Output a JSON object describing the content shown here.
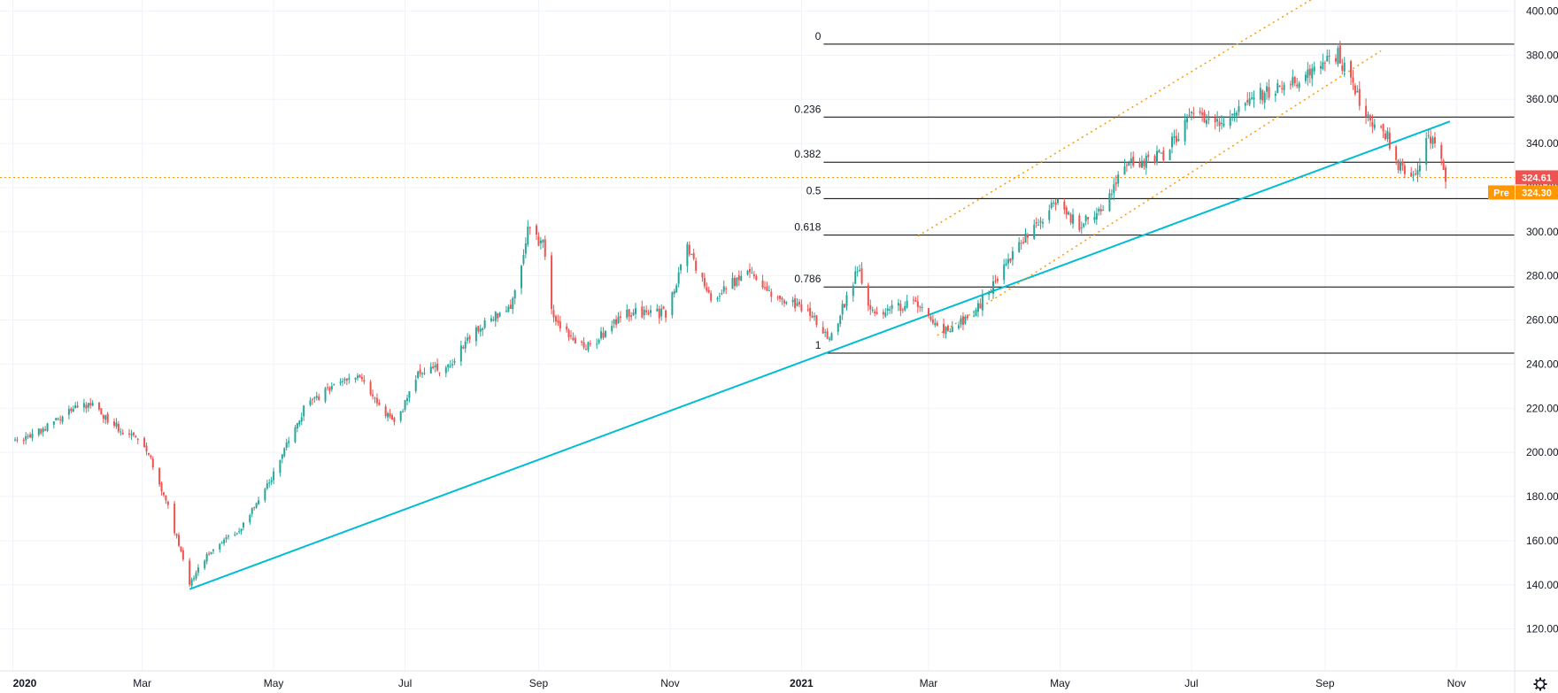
{
  "colors": {
    "up": "#26a69a",
    "down": "#ef5350",
    "grid": "#f0f3fa",
    "trendline": "#00bcd4",
    "channel": "#ff9800",
    "fib_line": "#000000",
    "last_price": "#ef5350",
    "pre_market": "#ff9800"
  },
  "chart_data": {
    "type": "candlestick",
    "x_range": [
      "2019-12-26",
      "2021-11-28"
    ],
    "ylim": [
      101,
      405
    ],
    "y_ticks": [
      "120.00",
      "140.00",
      "160.00",
      "180.00",
      "200.00",
      "220.00",
      "240.00",
      "260.00",
      "280.00",
      "300.00",
      "320.00",
      "340.00",
      "360.00",
      "380.00",
      "400.00"
    ],
    "y_tick_values": [
      120,
      140,
      160,
      180,
      200,
      220,
      240,
      260,
      280,
      300,
      320,
      340,
      360,
      380,
      400
    ],
    "x_ticks": [
      {
        "label": "2020",
        "date": "2020-01-01"
      },
      {
        "label": "Mar",
        "date": "2020-03-01"
      },
      {
        "label": "May",
        "date": "2020-05-01"
      },
      {
        "label": "Jul",
        "date": "2020-07-01"
      },
      {
        "label": "Sep",
        "date": "2020-09-01"
      },
      {
        "label": "Nov",
        "date": "2020-11-01"
      },
      {
        "label": "2021",
        "date": "2021-01-01"
      },
      {
        "label": "Mar",
        "date": "2021-03-01"
      },
      {
        "label": "May",
        "date": "2021-05-01"
      },
      {
        "label": "Jul",
        "date": "2021-07-01"
      },
      {
        "label": "Sep",
        "date": "2021-09-01"
      },
      {
        "label": "Nov",
        "date": "2021-11-01"
      }
    ],
    "price_path": [
      [
        "2020-01-02",
        205
      ],
      [
        "2020-01-15",
        210
      ],
      [
        "2020-01-30",
        220
      ],
      [
        "2020-02-07",
        222
      ],
      [
        "2020-02-12",
        217
      ],
      [
        "2020-02-20",
        210
      ],
      [
        "2020-03-02",
        204
      ],
      [
        "2020-03-12",
        178
      ],
      [
        "2020-03-23",
        141
      ],
      [
        "2020-04-01",
        155
      ],
      [
        "2020-04-15",
        165
      ],
      [
        "2020-05-01",
        190
      ],
      [
        "2020-05-15",
        220
      ],
      [
        "2020-06-01",
        232
      ],
      [
        "2020-06-10",
        234
      ],
      [
        "2020-06-26",
        212
      ],
      [
        "2020-07-08",
        237
      ],
      [
        "2020-07-20",
        238
      ],
      [
        "2020-07-31",
        252
      ],
      [
        "2020-08-20",
        268
      ],
      [
        "2020-08-27",
        301
      ],
      [
        "2020-09-03",
        294
      ],
      [
        "2020-09-08",
        260
      ],
      [
        "2020-09-23",
        247
      ],
      [
        "2020-10-12",
        263
      ],
      [
        "2020-10-30",
        263
      ],
      [
        "2020-11-09",
        292
      ],
      [
        "2020-11-20",
        270
      ],
      [
        "2020-12-07",
        282
      ],
      [
        "2020-12-21",
        270
      ],
      [
        "2021-01-04",
        265
      ],
      [
        "2021-01-14",
        250
      ],
      [
        "2021-01-27",
        283
      ],
      [
        "2021-02-03",
        263
      ],
      [
        "2021-02-24",
        268
      ],
      [
        "2021-03-08",
        255
      ],
      [
        "2021-03-22",
        263
      ],
      [
        "2021-04-12",
        295
      ],
      [
        "2021-04-29",
        313
      ],
      [
        "2021-05-10",
        303
      ],
      [
        "2021-05-21",
        312
      ],
      [
        "2021-06-01",
        330
      ],
      [
        "2021-06-18",
        335
      ],
      [
        "2021-07-01",
        352
      ],
      [
        "2021-07-15",
        348
      ],
      [
        "2021-07-28",
        360
      ],
      [
        "2021-08-12",
        366
      ],
      [
        "2021-08-27",
        372
      ],
      [
        "2021-09-07",
        380
      ],
      [
        "2021-09-20",
        352
      ],
      [
        "2021-09-30",
        344
      ],
      [
        "2021-10-04",
        330
      ],
      [
        "2021-10-13",
        324
      ],
      [
        "2021-10-19",
        343
      ],
      [
        "2021-10-22",
        341
      ],
      [
        "2021-10-27",
        325
      ]
    ],
    "fibonacci": {
      "high": 385,
      "low": 245,
      "levels": [
        {
          "ratio": 0,
          "label": "0"
        },
        {
          "ratio": 0.236,
          "label": "0.236"
        },
        {
          "ratio": 0.382,
          "label": "0.382"
        },
        {
          "ratio": 0.5,
          "label": "0.5"
        },
        {
          "ratio": 0.618,
          "label": "0.618"
        },
        {
          "ratio": 0.786,
          "label": "0.786"
        },
        {
          "ratio": 1,
          "label": "1"
        }
      ],
      "start_date": "2021-01-01"
    },
    "trendline": {
      "start": [
        "2020-03-23",
        138
      ],
      "end": [
        "2021-10-29",
        350
      ]
    },
    "channel": [
      {
        "start": [
          "2021-02-24",
          298
        ],
        "end": [
          "2021-08-27",
          406
        ]
      },
      {
        "start": [
          "2021-03-05",
          253
        ],
        "end": [
          "2021-09-27",
          382
        ]
      }
    ],
    "last_price": {
      "value": 324.61,
      "label": "324.61"
    },
    "pre_market": {
      "value": 324.3,
      "label": "324.30",
      "tag": "Pre"
    }
  }
}
